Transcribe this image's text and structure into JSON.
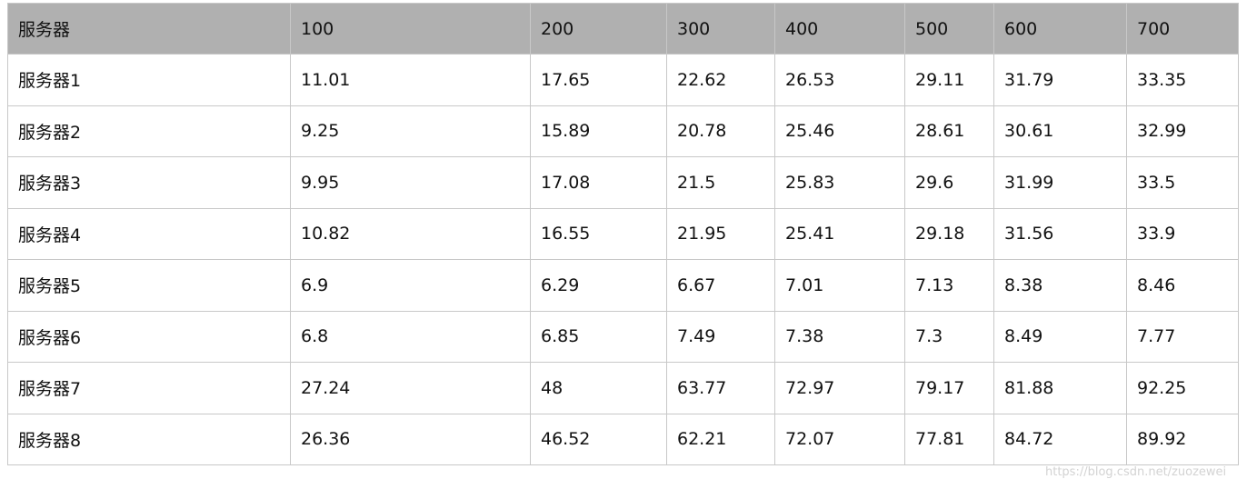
{
  "chart_data": {
    "type": "table",
    "columns": [
      "服务器",
      "100",
      "200",
      "300",
      "400",
      "500",
      "600",
      "700"
    ],
    "rows": [
      [
        "服务器1",
        "11.01",
        "17.65",
        "22.62",
        "26.53",
        "29.11",
        "31.79",
        "33.35"
      ],
      [
        "服务器2",
        "9.25",
        "15.89",
        "20.78",
        "25.46",
        "28.61",
        "30.61",
        "32.99"
      ],
      [
        "服务器3",
        "9.95",
        "17.08",
        "21.5",
        "25.83",
        "29.6",
        "31.99",
        "33.5"
      ],
      [
        "服务器4",
        "10.82",
        "16.55",
        "21.95",
        "25.41",
        "29.18",
        "31.56",
        "33.9"
      ],
      [
        "服务器5",
        "6.9",
        "6.29",
        "6.67",
        "7.01",
        "7.13",
        "8.38",
        "8.46"
      ],
      [
        "服务器6",
        "6.8",
        "6.85",
        "7.49",
        "7.38",
        "7.3",
        "8.49",
        "7.77"
      ],
      [
        "服务器7",
        "27.24",
        "48",
        "63.77",
        "72.97",
        "79.17",
        "81.88",
        "92.25"
      ],
      [
        "服务器8",
        "26.36",
        "46.52",
        "62.21",
        "72.07",
        "77.81",
        "84.72",
        "89.92"
      ]
    ],
    "header_color": "#b0b0b0",
    "border_color": "#c8c8c8"
  },
  "watermark": "https://blog.csdn.net/zuozewei"
}
